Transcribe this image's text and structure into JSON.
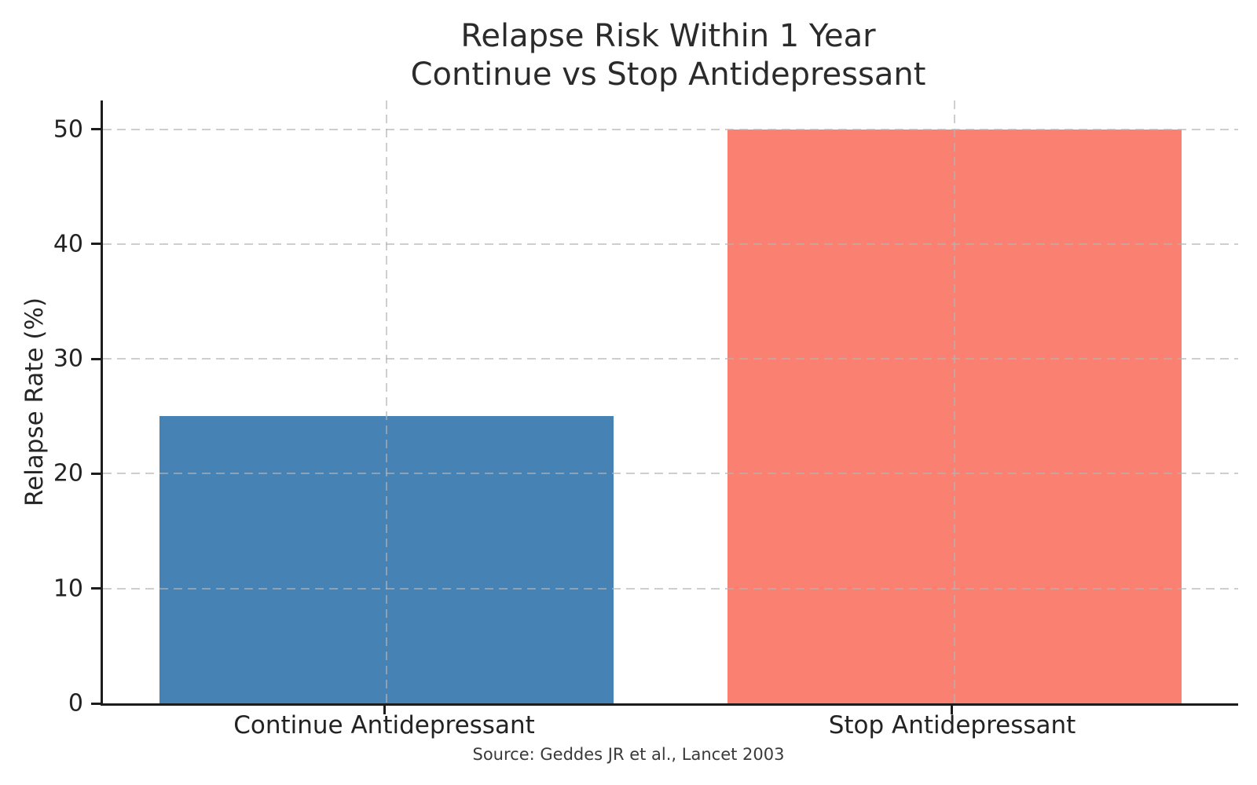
{
  "chart_data": {
    "type": "bar",
    "title": "Relapse Risk Within 1 Year\nContinue vs Stop Antidepressant",
    "xlabel": "",
    "ylabel": "Relapse Rate (%)",
    "categories": [
      "Continue Antidepressant",
      "Stop Antidepressant"
    ],
    "values": [
      25,
      50
    ],
    "bar_colors": [
      "#4682B4",
      "#FA8072"
    ],
    "yticks": [
      0,
      10,
      20,
      30,
      40,
      50
    ],
    "ylim": [
      0,
      52.5
    ],
    "grid": "dashed light-gray, horizontal at yticks and vertical at category centers, drawn above bars",
    "legend": "none",
    "source": "Source: Geddes JR et al., Lancet 2003"
  }
}
